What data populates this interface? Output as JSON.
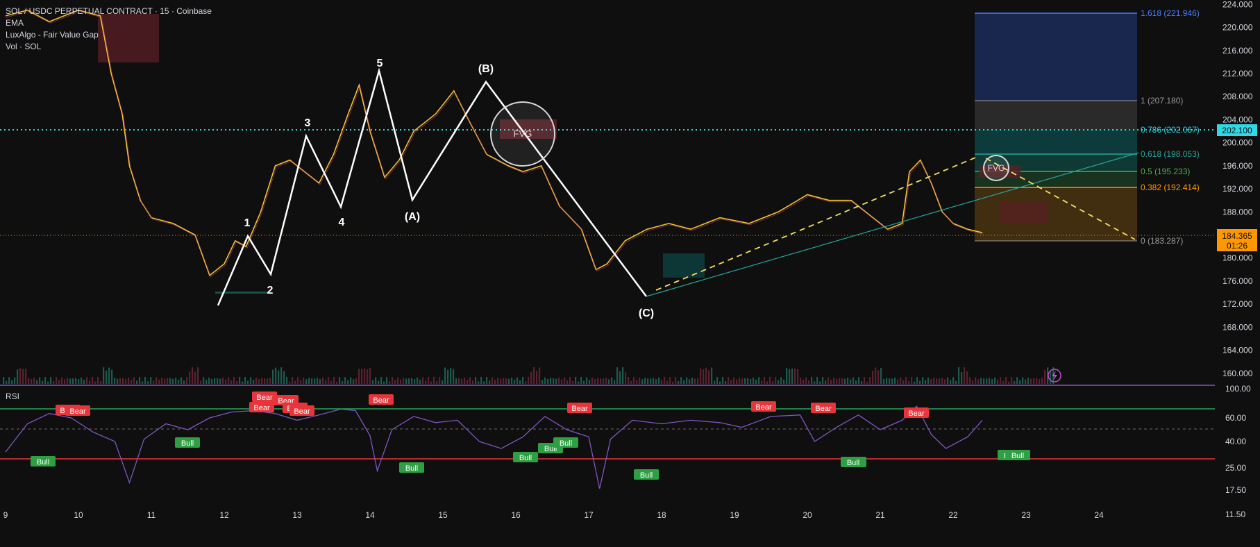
{
  "legend": {
    "symbol": "SOL / USDC PERPETUAL CONTRACT · 15 · Coinbase",
    "ind1": "EMA",
    "ind2": "LuxAlgo - Fair Value Gap",
    "ind3": "Vol · SOL"
  },
  "rsi_title": "RSI",
  "colors": {
    "bg": "#0f0f0f",
    "price_line": "#f0c23a",
    "wave": "#ffffff",
    "dotted_level": "#2ed8e6",
    "rsi_line": "#7e57c2",
    "rsi_upper": "#26a65b",
    "rsi_lower": "#e8353b",
    "bear": "#e8353b",
    "bull": "#2ea043",
    "fib_blue": "#1b2a55",
    "fib_teal": "#0d3b3b",
    "fib_orange": "#4a3210"
  },
  "chart_data": [
    {
      "type": "line",
      "panel": "price",
      "x_ticks": [
        "9",
        "10",
        "11",
        "12",
        "13",
        "14",
        "15",
        "16",
        "17",
        "18",
        "19",
        "20",
        "21",
        "22",
        "23",
        "24"
      ],
      "x_tick_days": [
        9,
        10,
        11,
        12,
        13,
        14,
        15,
        16,
        17,
        18,
        19,
        20,
        21,
        22,
        23,
        24
      ],
      "y_ticks": [
        "224.000",
        "220.000",
        "216.000",
        "212.000",
        "208.000",
        "204.000",
        "200.000",
        "196.000",
        "192.000",
        "188.000",
        "184.000",
        "180.000",
        "176.000",
        "172.000",
        "168.000",
        "164.000",
        "160.000"
      ],
      "ylim": [
        159.5,
        224.4
      ],
      "series": [
        {
          "points": [
            [
              9,
              222
            ],
            [
              9.3,
              223
            ],
            [
              9.6,
              221
            ],
            [
              10,
              223
            ],
            [
              10.3,
              222
            ],
            [
              10.45,
              212
            ],
            [
              10.6,
              205
            ],
            [
              10.7,
              196
            ],
            [
              10.85,
              190
            ],
            [
              11,
              187
            ],
            [
              11.3,
              186
            ],
            [
              11.6,
              184
            ],
            [
              11.8,
              177
            ],
            [
              12.0,
              179
            ],
            [
              12.15,
              183
            ],
            [
              12.3,
              182
            ],
            [
              12.5,
              188
            ],
            [
              12.7,
              196
            ],
            [
              12.9,
              197
            ],
            [
              13.1,
              195
            ],
            [
              13.3,
              193
            ],
            [
              13.5,
              198
            ],
            [
              13.7,
              205
            ],
            [
              13.85,
              210
            ],
            [
              14.0,
              202
            ],
            [
              14.2,
              194
            ],
            [
              14.4,
              197
            ],
            [
              14.6,
              202
            ],
            [
              14.9,
              205
            ],
            [
              15.15,
              209
            ],
            [
              15.35,
              204
            ],
            [
              15.6,
              198
            ],
            [
              15.9,
              196
            ],
            [
              16.1,
              195
            ],
            [
              16.35,
              196
            ],
            [
              16.6,
              189
            ],
            [
              16.9,
              185
            ],
            [
              17.1,
              178
            ],
            [
              17.25,
              179
            ],
            [
              17.5,
              183
            ],
            [
              17.8,
              185
            ],
            [
              18.1,
              186
            ],
            [
              18.4,
              185
            ],
            [
              18.8,
              187
            ],
            [
              19.2,
              186
            ],
            [
              19.6,
              188
            ],
            [
              20.0,
              191
            ],
            [
              20.3,
              190
            ],
            [
              20.6,
              190
            ],
            [
              20.9,
              187
            ],
            [
              21.1,
              185
            ],
            [
              21.3,
              186
            ],
            [
              21.4,
              195
            ],
            [
              21.55,
              197
            ],
            [
              21.7,
              193
            ],
            [
              21.85,
              188
            ],
            [
              22.0,
              186
            ],
            [
              22.2,
              185
            ],
            [
              22.4,
              184.4
            ]
          ]
        }
      ]
    },
    {
      "type": "line",
      "panel": "rsi",
      "title": "RSI",
      "y_ticks": [
        "100.00",
        "60.00",
        "40.00",
        "25.00",
        "17.50",
        "11.50"
      ],
      "levels": {
        "upper": 70,
        "mid": 50,
        "lower": 30
      },
      "series": [
        {
          "points": [
            [
              9,
              34
            ],
            [
              9.3,
              55
            ],
            [
              9.6,
              66
            ],
            [
              9.9,
              60
            ],
            [
              10.2,
              48
            ],
            [
              10.5,
              40
            ],
            [
              10.7,
              20
            ],
            [
              10.9,
              42
            ],
            [
              11.2,
              55
            ],
            [
              11.5,
              50
            ],
            [
              11.8,
              60
            ],
            [
              12.1,
              68
            ],
            [
              12.4,
              70
            ],
            [
              12.7,
              66
            ],
            [
              13.0,
              58
            ],
            [
              13.3,
              64
            ],
            [
              13.6,
              72
            ],
            [
              13.8,
              70
            ],
            [
              14.0,
              45
            ],
            [
              14.1,
              24
            ],
            [
              14.3,
              50
            ],
            [
              14.6,
              62
            ],
            [
              14.9,
              56
            ],
            [
              15.2,
              58
            ],
            [
              15.5,
              40
            ],
            [
              15.8,
              36
            ],
            [
              16.1,
              44
            ],
            [
              16.4,
              62
            ],
            [
              16.7,
              50
            ],
            [
              17.0,
              44
            ],
            [
              17.15,
              18
            ],
            [
              17.3,
              42
            ],
            [
              17.6,
              58
            ],
            [
              18.0,
              55
            ],
            [
              18.4,
              58
            ],
            [
              18.8,
              56
            ],
            [
              19.1,
              52
            ],
            [
              19.5,
              62
            ],
            [
              19.9,
              64
            ],
            [
              20.1,
              40
            ],
            [
              20.4,
              52
            ],
            [
              20.7,
              64
            ],
            [
              21.0,
              50
            ],
            [
              21.3,
              58
            ],
            [
              21.5,
              76
            ],
            [
              21.7,
              46
            ],
            [
              21.9,
              36
            ],
            [
              22.2,
              44
            ],
            [
              22.4,
              58
            ]
          ]
        }
      ]
    }
  ],
  "wave_labels": {
    "w1": "1",
    "w2": "2",
    "w3": "3",
    "w4": "4",
    "w5": "5",
    "wa": "(A)",
    "wb": "(B)",
    "wc": "(C)"
  },
  "fvg_label": "FVG",
  "fib_levels": [
    {
      "label": "1.618 (221.946)",
      "color": "#4f7cff"
    },
    {
      "label": "1 (207.180)",
      "color": "#9a9a9a"
    },
    {
      "label": "0.786 (202.067)",
      "color": "#2ed8e6"
    },
    {
      "label": "0.618 (198.053)",
      "color": "#26a69a"
    },
    {
      "label": "0.5 (195.233)",
      "color": "#4caf50"
    },
    {
      "label": "0.382 (192.414)",
      "color": "#ff9800"
    },
    {
      "label": "0 (183.287)",
      "color": "#9a9a9a"
    }
  ],
  "price_tags": {
    "level": "202.100",
    "last_price": "184.365",
    "countdown": "01:26"
  },
  "signals": {
    "bear": [
      "Bear",
      "Bear",
      "Bear",
      "Bear",
      "Bear",
      "Bear",
      "Bear",
      "Bear",
      "Bear",
      "Bear",
      "Bear",
      "Bear"
    ],
    "bull": [
      "Bull",
      "Bull",
      "Bull",
      "Bull",
      "Bull",
      "Bull",
      "Bull",
      "Bull",
      "Bull",
      "Bull",
      "Bull"
    ]
  }
}
